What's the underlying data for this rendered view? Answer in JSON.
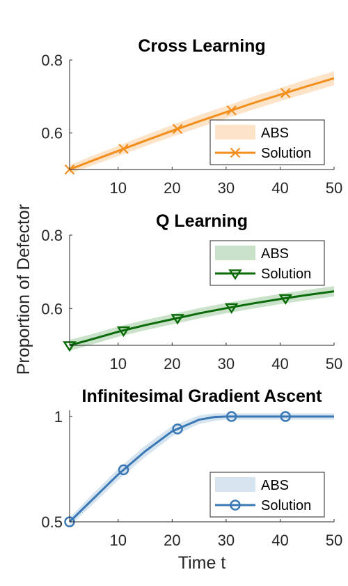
{
  "figure": {
    "ylabel": "Proportion of Defector",
    "xlabel": "Time t"
  },
  "chart_data": [
    {
      "type": "line",
      "title": "Cross Learning",
      "xlim": [
        1,
        50
      ],
      "ylim": [
        0.5,
        0.8
      ],
      "xticks": [
        10,
        20,
        30,
        40,
        50
      ],
      "yticks": [
        0.6,
        0.8
      ],
      "ytick_labels": [
        "0.6",
        "0.8"
      ],
      "color": "#f28e1c",
      "band_color": "#fde3c8",
      "marker": "x",
      "legend_position": "bottom-right",
      "series": [
        {
          "name": "Solution",
          "x": [
            1,
            5,
            10,
            15,
            20,
            25,
            30,
            35,
            40,
            45,
            50
          ],
          "y": [
            0.5,
            0.523,
            0.551,
            0.579,
            0.606,
            0.632,
            0.657,
            0.682,
            0.705,
            0.728,
            0.75
          ]
        }
      ],
      "band": {
        "name": "ABS",
        "x": [
          1,
          5,
          10,
          15,
          20,
          25,
          30,
          35,
          40,
          45,
          50
        ],
        "lower": [
          0.488,
          0.51,
          0.537,
          0.564,
          0.59,
          0.615,
          0.64,
          0.664,
          0.687,
          0.709,
          0.731
        ],
        "upper": [
          0.512,
          0.536,
          0.565,
          0.594,
          0.622,
          0.649,
          0.674,
          0.7,
          0.723,
          0.747,
          0.769
        ]
      },
      "marker_x": [
        1,
        11,
        21,
        31,
        41
      ],
      "legend": [
        "ABS",
        "Solution"
      ]
    },
    {
      "type": "line",
      "title": "Q Learning",
      "xlim": [
        1,
        50
      ],
      "ylim": [
        0.5,
        0.8
      ],
      "xticks": [
        10,
        20,
        30,
        40,
        50
      ],
      "yticks": [
        0.6,
        0.8
      ],
      "ytick_labels": [
        "0.6",
        "0.8"
      ],
      "color": "#0b6b0b",
      "band_color": "#c9e2c9",
      "marker": "triangle-down",
      "legend_position": "top-right",
      "series": [
        {
          "name": "Solution",
          "x": [
            1,
            5,
            10,
            15,
            20,
            25,
            30,
            35,
            40,
            45,
            50
          ],
          "y": [
            0.5,
            0.516,
            0.537,
            0.555,
            0.571,
            0.587,
            0.601,
            0.614,
            0.626,
            0.637,
            0.647
          ]
        }
      ],
      "band": {
        "name": "ABS",
        "x": [
          1,
          5,
          10,
          15,
          20,
          25,
          30,
          35,
          40,
          45,
          50
        ],
        "lower": [
          0.485,
          0.502,
          0.523,
          0.541,
          0.557,
          0.573,
          0.587,
          0.6,
          0.612,
          0.623,
          0.633
        ],
        "upper": [
          0.515,
          0.53,
          0.551,
          0.569,
          0.585,
          0.601,
          0.615,
          0.628,
          0.64,
          0.651,
          0.661
        ]
      },
      "marker_x": [
        1,
        11,
        21,
        31,
        41
      ],
      "legend": [
        "ABS",
        "Solution"
      ]
    },
    {
      "type": "line",
      "title": "Infinitesimal Gradient Ascent",
      "xlim": [
        1,
        50
      ],
      "ylim": [
        0.5,
        1.03
      ],
      "xticks": [
        10,
        20,
        30,
        40,
        50
      ],
      "yticks": [
        0.5,
        1
      ],
      "ytick_labels": [
        "0.5",
        "1"
      ],
      "color": "#3a78b5",
      "band_color": "#d6e4f0",
      "marker": "circle",
      "legend_position": "bottom-right",
      "series": [
        {
          "name": "Solution",
          "x": [
            1,
            5,
            10,
            15,
            20,
            25,
            28,
            30,
            35,
            40,
            45,
            50
          ],
          "y": [
            0.5,
            0.6,
            0.725,
            0.835,
            0.93,
            0.985,
            0.998,
            1.0,
            1.0,
            1.0,
            1.0,
            1.0
          ]
        }
      ],
      "band": {
        "name": "ABS",
        "x": [
          1,
          5,
          10,
          15,
          20,
          25,
          28,
          30,
          35,
          40,
          45,
          50
        ],
        "lower": [
          0.48,
          0.575,
          0.698,
          0.808,
          0.905,
          0.965,
          0.98,
          0.985,
          0.985,
          0.985,
          0.985,
          0.985
        ],
        "upper": [
          0.52,
          0.625,
          0.752,
          0.862,
          0.955,
          1.005,
          1.015,
          1.015,
          1.015,
          1.015,
          1.015,
          1.015
        ]
      },
      "marker_x": [
        1,
        11,
        21,
        31,
        41
      ],
      "legend": [
        "ABS",
        "Solution"
      ]
    }
  ]
}
